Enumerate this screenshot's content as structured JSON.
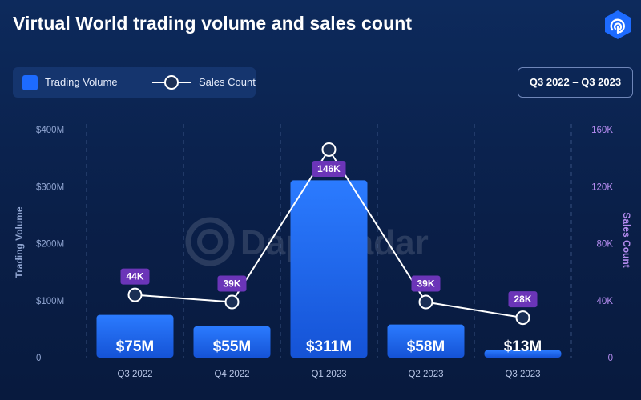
{
  "header": {
    "title": "Virtual World trading volume and sales count",
    "period": "Q3 2022 – Q3 2023"
  },
  "legend": {
    "items": [
      {
        "label": "Trading Volume",
        "type": "bar"
      },
      {
        "label": "Sales Count",
        "type": "line"
      }
    ]
  },
  "watermark": "DappRadar",
  "colors": {
    "bar": "#1d6bff",
    "line": "#ffffff",
    "label_badge": "#6b35b8",
    "right_axis": "#b58cf0",
    "left_axis": "#8fa4d0"
  },
  "chart_data": {
    "type": "bar",
    "categories": [
      "Q3 2022",
      "Q4 2022",
      "Q1 2023",
      "Q2 2023",
      "Q3 2023"
    ],
    "series": [
      {
        "name": "Trading Volume",
        "type": "bar",
        "axis": "left",
        "values": [
          75,
          55,
          311,
          58,
          13
        ],
        "labels": [
          "$75M",
          "$55M",
          "$311M",
          "$58M",
          "$13M"
        ]
      },
      {
        "name": "Sales Count",
        "type": "line",
        "axis": "right",
        "values": [
          44,
          39,
          146,
          39,
          28
        ],
        "labels": [
          "44K",
          "39K",
          "146K",
          "39K",
          "28K"
        ]
      }
    ],
    "ylabel": "Trading Volume",
    "y2label": "Sales Count",
    "ylim": [
      0,
      400
    ],
    "y2lim": [
      0,
      160
    ],
    "yticks": [
      0,
      100,
      200,
      300,
      400
    ],
    "ytick_labels": [
      "0",
      "$100M",
      "$200M",
      "$300M",
      "$400M"
    ],
    "y2ticks": [
      0,
      40,
      80,
      120,
      160
    ],
    "y2tick_labels": [
      "0",
      "40K",
      "80K",
      "120K",
      "160K"
    ],
    "grid": "vertical dashed",
    "legend_position": "top-left"
  }
}
